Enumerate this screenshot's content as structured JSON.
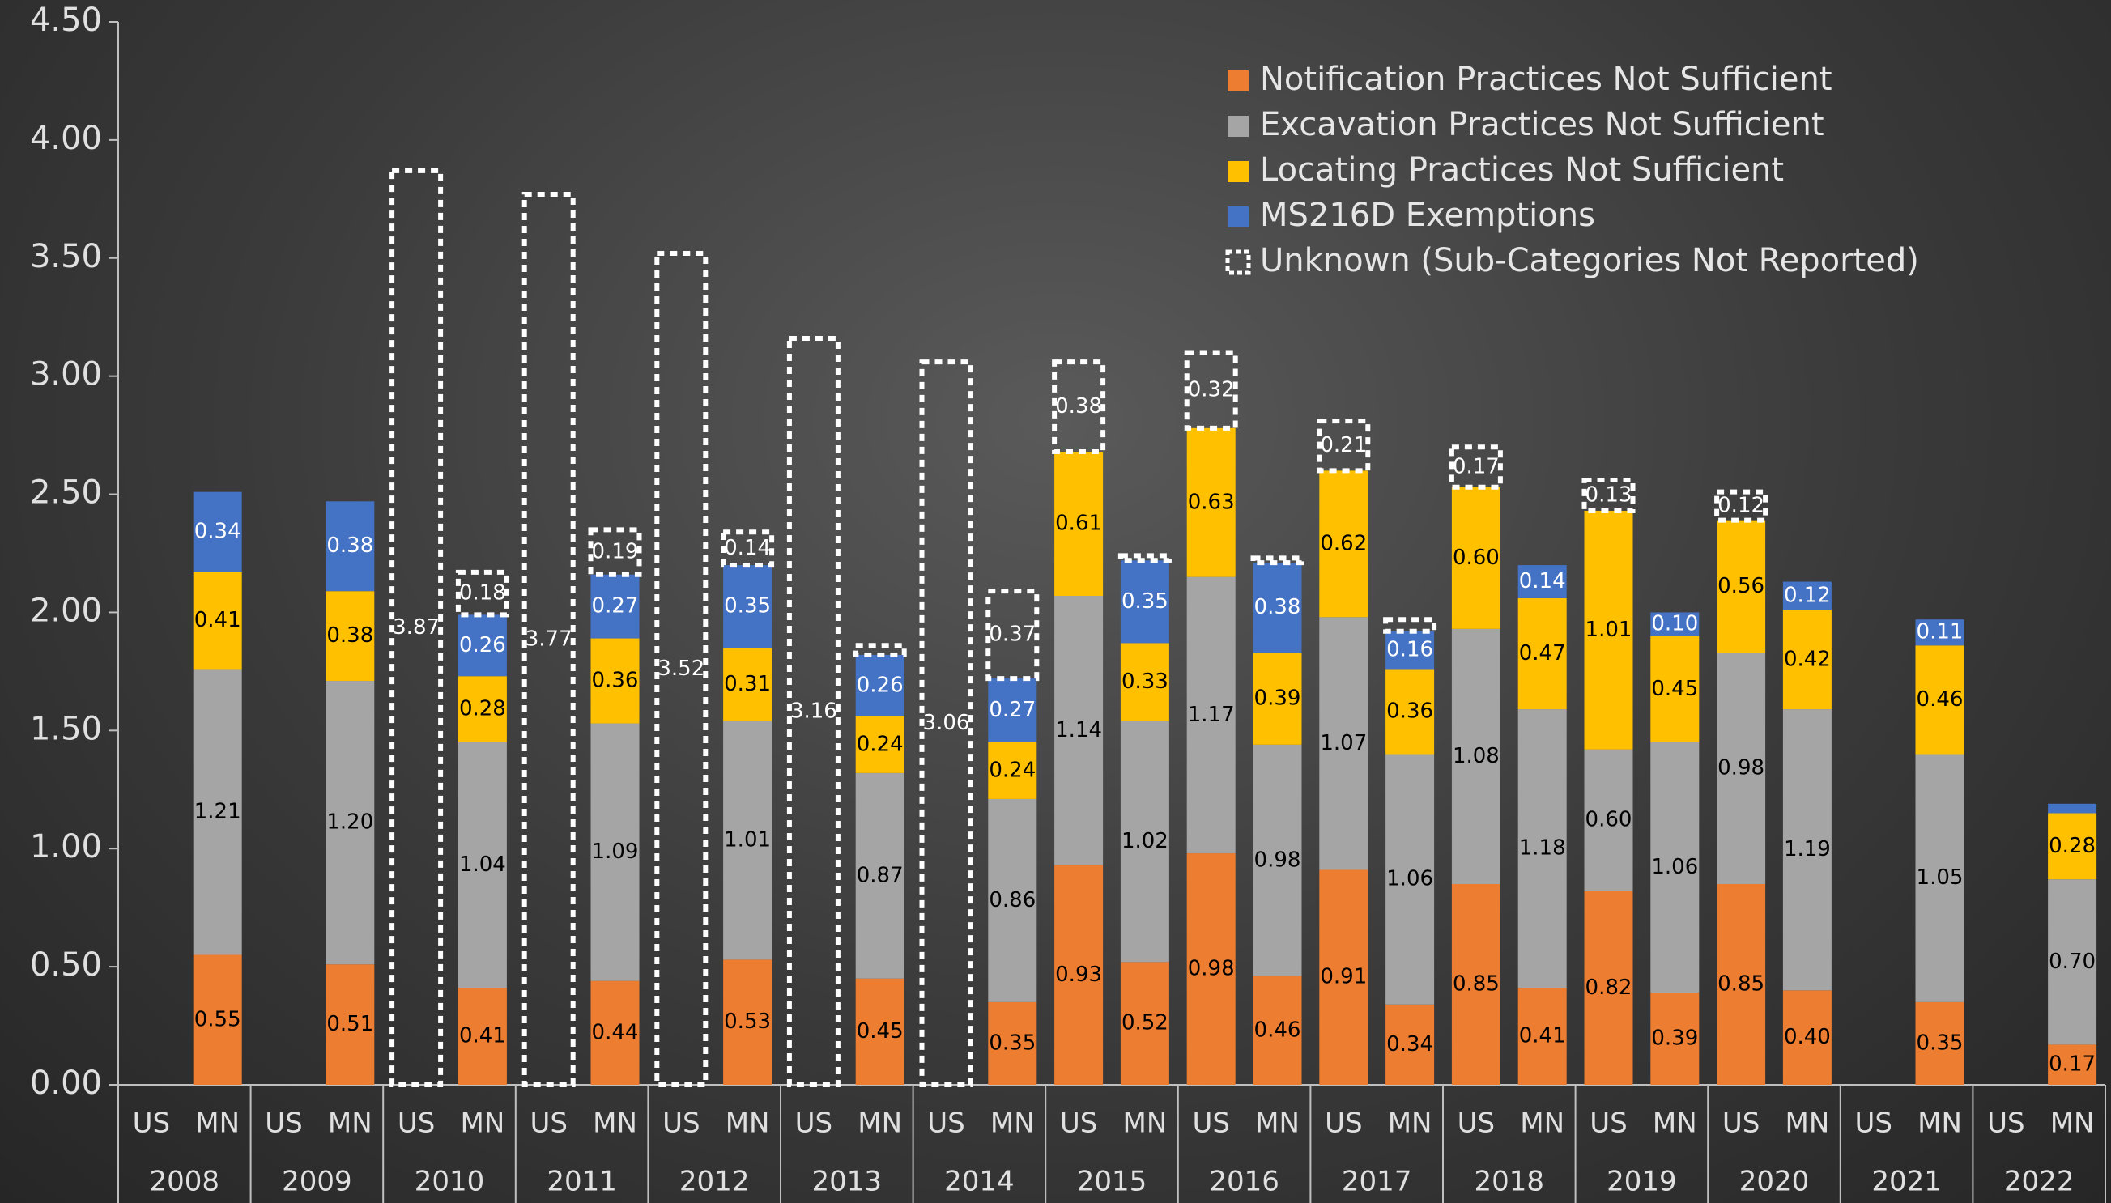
{
  "chart_data": {
    "type": "stacked-bar",
    "categories": [
      "US",
      "MN",
      "US",
      "MN",
      "US",
      "MN",
      "US",
      "MN",
      "US",
      "MN",
      "US",
      "MN",
      "US",
      "MN",
      "US",
      "MN",
      "US",
      "MN",
      "US",
      "MN",
      "US",
      "MN",
      "US",
      "MN",
      "US",
      "MN",
      "US",
      "MN",
      "US",
      "MN"
    ],
    "groups": [
      "2008",
      "2009",
      "2010",
      "2011",
      "2012",
      "2013",
      "2014",
      "2015",
      "2016",
      "2017",
      "2018",
      "2019",
      "2020",
      "2021",
      "2022"
    ],
    "ylim": [
      0,
      4.5
    ],
    "yticks": [
      {
        "value": 0,
        "label": "0.00"
      },
      {
        "value": 0.5,
        "label": "0.50"
      },
      {
        "value": 1,
        "label": "1.00"
      },
      {
        "value": 1.5,
        "label": "1.50"
      },
      {
        "value": 2,
        "label": "2.00"
      },
      {
        "value": 2.5,
        "label": "2.50"
      },
      {
        "value": 3,
        "label": "3.00"
      },
      {
        "value": 3.5,
        "label": "3.50"
      },
      {
        "value": 4,
        "label": "4.00"
      },
      {
        "value": 4.5,
        "label": "4.50"
      }
    ],
    "grid": false,
    "legend": "top-right",
    "series": [
      {
        "name": "Notification Practices Not Sufficient",
        "color": "#ed7d31",
        "label_color": "#000000",
        "values": [
          null,
          0.55,
          null,
          0.51,
          null,
          0.41,
          null,
          0.44,
          null,
          0.53,
          null,
          0.45,
          null,
          0.35,
          0.93,
          0.52,
          0.98,
          0.46,
          0.91,
          0.34,
          0.85,
          0.41,
          0.82,
          0.39,
          0.85,
          0.4,
          null,
          0.35,
          null,
          0.17
        ],
        "value_labels": [
          null,
          "0.55",
          null,
          "0.51",
          null,
          "0.41",
          null,
          "0.44",
          null,
          "0.53",
          null,
          "0.45",
          null,
          "0.35",
          "0.93",
          "0.52",
          "0.98",
          "0.46",
          "0.91",
          "0.34",
          "0.85",
          "0.41",
          "0.82",
          "0.39",
          "0.85",
          "0.40",
          null,
          "0.35",
          null,
          "0.17"
        ]
      },
      {
        "name": "Excavation Practices Not Sufficient",
        "color": "#a5a5a5",
        "label_color": "#000000",
        "values": [
          null,
          1.21,
          null,
          1.2,
          null,
          1.04,
          null,
          1.09,
          null,
          1.01,
          null,
          0.87,
          null,
          0.86,
          1.14,
          1.02,
          1.17,
          0.98,
          1.07,
          1.06,
          1.08,
          1.18,
          0.6,
          1.06,
          0.98,
          1.19,
          null,
          1.05,
          null,
          0.7
        ],
        "value_labels": [
          null,
          "1.21",
          null,
          "1.20",
          null,
          "1.04",
          null,
          "1.09",
          null,
          "1.01",
          null,
          "0.87",
          null,
          "0.86",
          "1.14",
          "1.02",
          "1.17",
          "0.98",
          "1.07",
          "1.06",
          "1.08",
          "1.18",
          "0.60",
          "1.06",
          "0.98",
          "1.19",
          null,
          "1.05",
          null,
          "0.70"
        ]
      },
      {
        "name": "Locating Practices Not Sufficient",
        "color": "#ffc000",
        "label_color": "#000000",
        "values": [
          null,
          0.41,
          null,
          0.38,
          null,
          0.28,
          null,
          0.36,
          null,
          0.31,
          null,
          0.24,
          null,
          0.24,
          0.61,
          0.33,
          0.63,
          0.39,
          0.62,
          0.36,
          0.6,
          0.47,
          1.01,
          0.45,
          0.56,
          0.42,
          null,
          0.46,
          null,
          0.28
        ],
        "value_labels": [
          null,
          "0.41",
          null,
          "0.38",
          null,
          "0.28",
          null,
          "0.36",
          null,
          "0.31",
          null,
          "0.24",
          null,
          "0.24",
          "0.61",
          "0.33",
          "0.63",
          "0.39",
          "0.62",
          "0.36",
          "0.60",
          "0.47",
          "1.01",
          "0.45",
          "0.56",
          "0.42",
          null,
          "0.46",
          null,
          "0.28"
        ]
      },
      {
        "name": "MS216D Exemptions",
        "color": "#4472c4",
        "label_color": "#ffffff",
        "values": [
          null,
          0.34,
          null,
          0.38,
          null,
          0.26,
          null,
          0.27,
          null,
          0.35,
          null,
          0.26,
          null,
          0.27,
          null,
          0.35,
          null,
          0.38,
          null,
          0.16,
          null,
          0.14,
          null,
          0.1,
          null,
          0.12,
          null,
          0.11,
          null,
          0.04
        ],
        "value_labels": [
          null,
          "0.34",
          null,
          "0.38",
          null,
          "0.26",
          null,
          "0.27",
          null,
          "0.35",
          null,
          "0.26",
          null,
          "0.27",
          null,
          "0.35",
          null,
          "0.38",
          null,
          "0.16",
          null,
          "0.14",
          null,
          "0.10",
          null,
          "0.12",
          null,
          "0.11",
          null,
          null
        ]
      },
      {
        "name": "Unknown (Sub-Categories Not Reported)",
        "color": "#ffffff",
        "style": "dashed-outline",
        "label_color": "#ffffff",
        "values": [
          null,
          null,
          null,
          null,
          3.87,
          0.18,
          3.77,
          0.19,
          3.52,
          0.14,
          3.16,
          0.04,
          3.06,
          0.37,
          0.38,
          0.02,
          0.32,
          0.02,
          0.21,
          0.05,
          0.17,
          null,
          0.13,
          null,
          0.12,
          null,
          null,
          null,
          null,
          null
        ],
        "value_labels": [
          null,
          null,
          null,
          null,
          "3.87",
          "0.18",
          "3.77",
          "0.19",
          "3.52",
          "0.14",
          "3.16",
          null,
          "3.06",
          "0.37",
          "0.38",
          null,
          "0.32",
          null,
          "0.21",
          null,
          "0.17",
          null,
          "0.13",
          null,
          "0.12",
          null,
          null,
          null,
          null,
          null
        ]
      }
    ]
  }
}
